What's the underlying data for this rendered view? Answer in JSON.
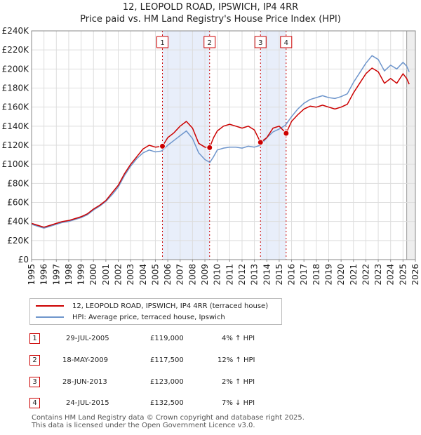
{
  "chart_data": {
    "type": "line",
    "title": "12, LEOPOLD ROAD, IPSWICH, IP4 4RR",
    "subtitle": "Price paid vs. HM Land Registry's House Price Index (HPI)",
    "xlim": [
      1995,
      2026
    ],
    "ylim": [
      0,
      240000
    ],
    "x_tick_labels": [
      "1995",
      "1996",
      "1997",
      "1998",
      "1999",
      "2000",
      "2001",
      "2002",
      "2003",
      "2004",
      "2005",
      "2006",
      "2007",
      "2008",
      "2009",
      "2010",
      "2011",
      "2012",
      "2013",
      "2014",
      "2015",
      "2016",
      "2017",
      "2018",
      "2019",
      "2020",
      "2021",
      "2022",
      "2023",
      "2024",
      "2025",
      "2026"
    ],
    "y_ticks": [
      0,
      20000,
      40000,
      60000,
      80000,
      100000,
      120000,
      140000,
      160000,
      180000,
      200000,
      220000,
      240000
    ],
    "y_tick_labels": [
      "£0",
      "£20K",
      "£40K",
      "£60K",
      "£80K",
      "£100K",
      "£120K",
      "£140K",
      "£160K",
      "£180K",
      "£200K",
      "£220K",
      "£240K"
    ],
    "grid": true,
    "series": [
      {
        "name": "12, LEOPOLD ROAD, IPSWICH, IP4 4RR (terraced house)",
        "color": "#cc0000",
        "x": [
          1995.0,
          1995.5,
          1996.0,
          1996.5,
          1997.0,
          1997.5,
          1998.0,
          1998.5,
          1999.0,
          1999.5,
          2000.0,
          2000.5,
          2001.0,
          2001.5,
          2002.0,
          2002.5,
          2003.0,
          2003.5,
          2004.0,
          2004.5,
          2005.0,
          2005.57,
          2006.0,
          2006.5,
          2007.0,
          2007.5,
          2008.0,
          2008.5,
          2009.0,
          2009.38,
          2009.7,
          2010.0,
          2010.5,
          2011.0,
          2011.5,
          2012.0,
          2012.5,
          2013.0,
          2013.49,
          2014.0,
          2014.5,
          2015.0,
          2015.56,
          2016.0,
          2016.5,
          2017.0,
          2017.5,
          2018.0,
          2018.5,
          2019.0,
          2019.5,
          2020.0,
          2020.5,
          2021.0,
          2021.5,
          2022.0,
          2022.5,
          2023.0,
          2023.5,
          2024.0,
          2024.5,
          2025.0,
          2025.3,
          2025.5
        ],
        "y": [
          38000,
          36000,
          34000,
          36000,
          38000,
          40000,
          41000,
          43000,
          45000,
          48000,
          53000,
          57000,
          62000,
          70000,
          78000,
          90000,
          100000,
          108000,
          116000,
          120000,
          118000,
          119000,
          128000,
          133000,
          140000,
          145000,
          138000,
          122000,
          118000,
          117500,
          128000,
          135000,
          140000,
          142000,
          140000,
          138000,
          140000,
          136000,
          123000,
          128000,
          138000,
          140000,
          132500,
          145000,
          152000,
          158000,
          161000,
          160000,
          162000,
          160000,
          158000,
          160000,
          163000,
          175000,
          185000,
          195000,
          201000,
          197000,
          185000,
          190000,
          185000,
          195000,
          190000,
          184000
        ]
      },
      {
        "name": "HPI: Average price, terraced house, Ipswich",
        "color": "#6f96cc",
        "x": [
          1995.0,
          1995.5,
          1996.0,
          1996.5,
          1997.0,
          1997.5,
          1998.0,
          1998.5,
          1999.0,
          1999.5,
          2000.0,
          2000.5,
          2001.0,
          2001.5,
          2002.0,
          2002.5,
          2003.0,
          2003.5,
          2004.0,
          2004.5,
          2005.0,
          2005.5,
          2006.0,
          2006.5,
          2007.0,
          2007.5,
          2008.0,
          2008.5,
          2009.0,
          2009.4,
          2009.7,
          2010.0,
          2010.5,
          2011.0,
          2011.5,
          2012.0,
          2012.5,
          2013.0,
          2013.5,
          2014.0,
          2014.5,
          2015.0,
          2015.5,
          2016.0,
          2016.5,
          2017.0,
          2017.5,
          2018.0,
          2018.5,
          2019.0,
          2019.5,
          2020.0,
          2020.5,
          2021.0,
          2021.5,
          2022.0,
          2022.5,
          2023.0,
          2023.5,
          2024.0,
          2024.5,
          2025.0,
          2025.3,
          2025.5
        ],
        "y": [
          37000,
          35000,
          33000,
          35000,
          37000,
          39000,
          40000,
          42000,
          44000,
          47000,
          52000,
          56000,
          61000,
          68000,
          76000,
          88000,
          98000,
          106000,
          112000,
          115000,
          113000,
          114000,
          120000,
          125000,
          130000,
          135000,
          127000,
          112000,
          105000,
          102000,
          108000,
          115000,
          117000,
          118000,
          118000,
          117000,
          119000,
          118000,
          120000,
          128000,
          134000,
          137000,
          141000,
          150000,
          158000,
          164000,
          168000,
          170000,
          172000,
          170000,
          169000,
          171000,
          174000,
          186000,
          196000,
          206000,
          214000,
          210000,
          198000,
          204000,
          200000,
          207000,
          203000,
          197000
        ]
      }
    ],
    "annotations": [
      {
        "label": "1",
        "x": 2005.57
      },
      {
        "label": "2",
        "x": 2009.38
      },
      {
        "label": "3",
        "x": 2013.49
      },
      {
        "label": "4",
        "x": 2015.56
      }
    ],
    "sales": [
      {
        "x": 2005.57,
        "y": 119000
      },
      {
        "x": 2009.38,
        "y": 117500
      },
      {
        "x": 2013.49,
        "y": 123000
      },
      {
        "x": 2015.56,
        "y": 132500
      }
    ],
    "vertical_marker_x": 2025.3
  },
  "legend": {
    "property_label": "12, LEOPOLD ROAD, IPSWICH, IP4 4RR (terraced house)",
    "hpi_label": "HPI: Average price, terraced house, Ipswich",
    "property_color": "#cc0000",
    "hpi_color": "#6f96cc"
  },
  "transactions": [
    {
      "num": "1",
      "date": "29-JUL-2005",
      "price": "£119,000",
      "delta": "4% ↑ HPI"
    },
    {
      "num": "2",
      "date": "18-MAY-2009",
      "price": "£117,500",
      "delta": "12% ↑ HPI"
    },
    {
      "num": "3",
      "date": "28-JUN-2013",
      "price": "£123,000",
      "delta": "2% ↑ HPI"
    },
    {
      "num": "4",
      "date": "24-JUL-2015",
      "price": "£132,500",
      "delta": "7% ↓ HPI"
    }
  ],
  "footer": {
    "line1": "Contains HM Land Registry data © Crown copyright and database right 2025.",
    "line2": "This data is licensed under the Open Government Licence v3.0."
  }
}
